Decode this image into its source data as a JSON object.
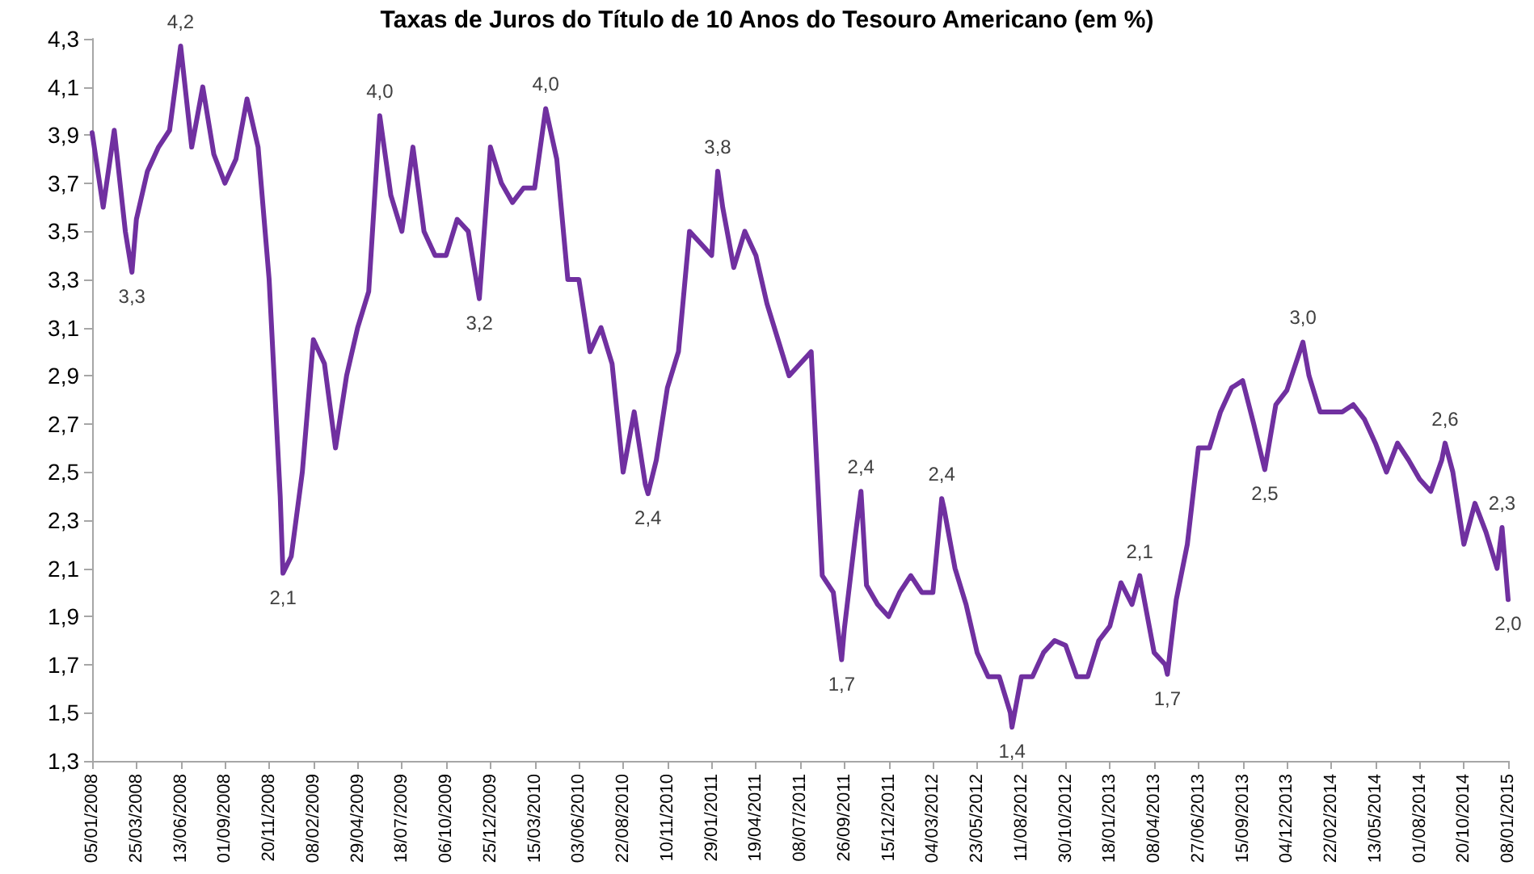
{
  "chart_data": {
    "type": "line",
    "title": "Taxas de Juros do Título de 10 Anos do Tesouro Americano (em %)",
    "x": [
      "2008-01-05",
      "2008-01-25",
      "2008-02-14",
      "2008-03-05",
      "2008-03-17",
      "2008-03-25",
      "2008-04-14",
      "2008-05-04",
      "2008-05-24",
      "2008-06-13",
      "2008-07-03",
      "2008-07-23",
      "2008-08-12",
      "2008-09-01",
      "2008-09-21",
      "2008-10-11",
      "2008-10-31",
      "2008-11-20",
      "2008-12-10",
      "2008-12-15",
      "2008-12-30",
      "2009-01-19",
      "2009-02-08",
      "2009-02-28",
      "2009-03-20",
      "2009-04-09",
      "2009-04-29",
      "2009-05-19",
      "2009-06-08",
      "2009-06-28",
      "2009-07-18",
      "2009-08-07",
      "2009-08-27",
      "2009-09-16",
      "2009-10-06",
      "2009-10-26",
      "2009-11-15",
      "2009-12-05",
      "2009-12-25",
      "2010-01-14",
      "2010-02-03",
      "2010-02-23",
      "2010-03-15",
      "2010-04-04",
      "2010-04-24",
      "2010-05-14",
      "2010-06-03",
      "2010-06-23",
      "2010-07-13",
      "2010-08-02",
      "2010-08-22",
      "2010-09-11",
      "2010-10-01",
      "2010-10-06",
      "2010-10-21",
      "2010-11-10",
      "2010-11-30",
      "2010-12-20",
      "2011-01-09",
      "2011-01-29",
      "2011-02-09",
      "2011-02-18",
      "2011-03-10",
      "2011-03-30",
      "2011-04-19",
      "2011-05-09",
      "2011-05-29",
      "2011-06-18",
      "2011-07-08",
      "2011-07-28",
      "2011-08-17",
      "2011-09-06",
      "2011-09-21",
      "2011-09-26",
      "2011-10-16",
      "2011-10-26",
      "2011-11-05",
      "2011-11-25",
      "2011-12-15",
      "2012-01-04",
      "2012-01-24",
      "2012-02-13",
      "2012-03-04",
      "2012-03-20",
      "2012-03-24",
      "2012-04-13",
      "2012-05-03",
      "2012-05-23",
      "2012-06-12",
      "2012-07-02",
      "2012-07-22",
      "2012-07-25",
      "2012-08-11",
      "2012-08-31",
      "2012-09-20",
      "2012-10-10",
      "2012-10-30",
      "2012-11-19",
      "2012-12-09",
      "2012-12-29",
      "2013-01-18",
      "2013-02-07",
      "2013-02-27",
      "2013-03-13",
      "2013-04-08",
      "2013-04-28",
      "2013-05-02",
      "2013-05-18",
      "2013-06-07",
      "2013-06-27",
      "2013-07-17",
      "2013-08-06",
      "2013-08-26",
      "2013-09-15",
      "2013-10-05",
      "2013-10-25",
      "2013-11-14",
      "2013-12-04",
      "2014-01-02",
      "2014-01-13",
      "2014-02-02",
      "2014-02-22",
      "2014-03-14",
      "2014-04-03",
      "2014-04-23",
      "2014-05-13",
      "2014-06-02",
      "2014-06-22",
      "2014-07-12",
      "2014-08-01",
      "2014-08-21",
      "2014-09-10",
      "2014-09-16",
      "2014-09-30",
      "2014-10-20",
      "2014-11-09",
      "2014-11-29",
      "2014-12-19",
      "2014-12-28",
      "2015-01-08"
    ],
    "series": [
      {
        "color": "#7030a0",
        "values": [
          3.91,
          3.6,
          3.92,
          3.5,
          3.33,
          3.55,
          3.75,
          3.85,
          3.92,
          4.27,
          3.85,
          4.1,
          3.82,
          3.7,
          3.8,
          4.05,
          3.85,
          3.3,
          2.4,
          2.08,
          2.15,
          2.5,
          3.05,
          2.95,
          2.6,
          2.9,
          3.1,
          3.25,
          3.98,
          3.65,
          3.5,
          3.85,
          3.5,
          3.4,
          3.4,
          3.55,
          3.5,
          3.22,
          3.85,
          3.7,
          3.62,
          3.68,
          3.68,
          4.01,
          3.8,
          3.3,
          3.3,
          3.0,
          3.1,
          2.95,
          2.5,
          2.75,
          2.45,
          2.41,
          2.55,
          2.85,
          3.0,
          3.5,
          3.45,
          3.4,
          3.75,
          3.6,
          3.35,
          3.5,
          3.4,
          3.2,
          3.05,
          2.9,
          2.95,
          3.0,
          2.07,
          2.0,
          1.72,
          1.85,
          2.24,
          2.42,
          2.03,
          1.95,
          1.9,
          2.0,
          2.07,
          2.0,
          2.0,
          2.39,
          2.35,
          2.1,
          1.95,
          1.75,
          1.65,
          1.65,
          1.5,
          1.44,
          1.65,
          1.65,
          1.75,
          1.8,
          1.78,
          1.65,
          1.65,
          1.8,
          1.86,
          2.04,
          1.95,
          2.07,
          1.75,
          1.7,
          1.66,
          1.97,
          2.2,
          2.6,
          2.6,
          2.75,
          2.85,
          2.88,
          2.7,
          2.51,
          2.78,
          2.84,
          3.04,
          2.9,
          2.75,
          2.75,
          2.75,
          2.78,
          2.72,
          2.62,
          2.5,
          2.62,
          2.55,
          2.47,
          2.42,
          2.55,
          2.62,
          2.5,
          2.2,
          2.37,
          2.25,
          2.1,
          2.27,
          1.97
        ]
      }
    ],
    "xlim": [
      "2008-01-05",
      "2015-01-08"
    ],
    "xticks": [
      {
        "value": "2008-01-05",
        "label": "05/01/2008"
      },
      {
        "value": "2008-03-25",
        "label": "25/03/2008"
      },
      {
        "value": "2008-06-13",
        "label": "13/06/2008"
      },
      {
        "value": "2008-09-01",
        "label": "01/09/2008"
      },
      {
        "value": "2008-11-20",
        "label": "20/11/2008"
      },
      {
        "value": "2009-02-08",
        "label": "08/02/2009"
      },
      {
        "value": "2009-04-29",
        "label": "29/04/2009"
      },
      {
        "value": "2009-07-18",
        "label": "18/07/2009"
      },
      {
        "value": "2009-10-06",
        "label": "06/10/2009"
      },
      {
        "value": "2009-12-25",
        "label": "25/12/2009"
      },
      {
        "value": "2010-03-15",
        "label": "15/03/2010"
      },
      {
        "value": "2010-06-03",
        "label": "03/06/2010"
      },
      {
        "value": "2010-08-22",
        "label": "22/08/2010"
      },
      {
        "value": "2010-11-10",
        "label": "10/11/2010"
      },
      {
        "value": "2011-01-29",
        "label": "29/01/2011"
      },
      {
        "value": "2011-04-19",
        "label": "19/04/2011"
      },
      {
        "value": "2011-07-08",
        "label": "08/07/2011"
      },
      {
        "value": "2011-09-26",
        "label": "26/09/2011"
      },
      {
        "value": "2011-12-15",
        "label": "15/12/2011"
      },
      {
        "value": "2012-03-04",
        "label": "04/03/2012"
      },
      {
        "value": "2012-05-23",
        "label": "23/05/2012"
      },
      {
        "value": "2012-08-11",
        "label": "11/08/2012"
      },
      {
        "value": "2012-10-30",
        "label": "30/10/2012"
      },
      {
        "value": "2013-01-18",
        "label": "18/01/2013"
      },
      {
        "value": "2013-04-08",
        "label": "08/04/2013"
      },
      {
        "value": "2013-06-27",
        "label": "27/06/2013"
      },
      {
        "value": "2013-09-15",
        "label": "15/09/2013"
      },
      {
        "value": "2013-12-04",
        "label": "04/12/2013"
      },
      {
        "value": "2014-02-22",
        "label": "22/02/2014"
      },
      {
        "value": "2014-05-13",
        "label": "13/05/2014"
      },
      {
        "value": "2014-08-01",
        "label": "01/08/2014"
      },
      {
        "value": "2014-10-20",
        "label": "20/10/2014"
      },
      {
        "value": "2015-01-08",
        "label": "08/01/2015"
      }
    ],
    "ylim": [
      1.3,
      4.3
    ],
    "yticks": [
      {
        "value": 1.3,
        "label": "1,3"
      },
      {
        "value": 1.5,
        "label": "1,5"
      },
      {
        "value": 1.7,
        "label": "1,7"
      },
      {
        "value": 1.9,
        "label": "1,9"
      },
      {
        "value": 2.1,
        "label": "2,1"
      },
      {
        "value": 2.3,
        "label": "2,3"
      },
      {
        "value": 2.5,
        "label": "2,5"
      },
      {
        "value": 2.7,
        "label": "2,7"
      },
      {
        "value": 2.9,
        "label": "2,9"
      },
      {
        "value": 3.1,
        "label": "3,1"
      },
      {
        "value": 3.3,
        "label": "3,3"
      },
      {
        "value": 3.5,
        "label": "3,5"
      },
      {
        "value": 3.7,
        "label": "3,7"
      },
      {
        "value": 3.9,
        "label": "3,9"
      },
      {
        "value": 4.1,
        "label": "4,1"
      },
      {
        "value": 4.3,
        "label": "4,3"
      }
    ],
    "annotations": [
      {
        "text": "3,3",
        "x": "2008-03-17",
        "y": 3.33
      },
      {
        "text": "4,2",
        "x": "2008-06-13",
        "y": 4.27
      },
      {
        "text": "2,1",
        "x": "2008-12-15",
        "y": 2.08
      },
      {
        "text": "4,0",
        "x": "2009-06-08",
        "y": 3.98
      },
      {
        "text": "3,2",
        "x": "2009-12-05",
        "y": 3.22
      },
      {
        "text": "4,0",
        "x": "2010-04-04",
        "y": 4.01
      },
      {
        "text": "2,4",
        "x": "2010-10-06",
        "y": 2.41
      },
      {
        "text": "3,8",
        "x": "2011-02-09",
        "y": 3.75
      },
      {
        "text": "1,7",
        "x": "2011-09-21",
        "y": 1.72
      },
      {
        "text": "2,4",
        "x": "2011-10-26",
        "y": 2.42
      },
      {
        "text": "2,4",
        "x": "2012-03-20",
        "y": 2.39
      },
      {
        "text": "1,4",
        "x": "2012-07-25",
        "y": 1.44
      },
      {
        "text": "2,1",
        "x": "2013-03-13",
        "y": 2.07
      },
      {
        "text": "1,7",
        "x": "2013-05-02",
        "y": 1.66
      },
      {
        "text": "2,5",
        "x": "2013-10-25",
        "y": 2.51
      },
      {
        "text": "3,0",
        "x": "2014-01-02",
        "y": 3.04
      },
      {
        "text": "2,6",
        "x": "2014-09-16",
        "y": 2.62
      },
      {
        "text": "2,3",
        "x": "2014-12-28",
        "y": 2.27
      },
      {
        "text": "2,0",
        "x": "2015-01-08",
        "y": 1.97
      }
    ],
    "grid": false,
    "marker": "none",
    "line_style": "solid"
  }
}
